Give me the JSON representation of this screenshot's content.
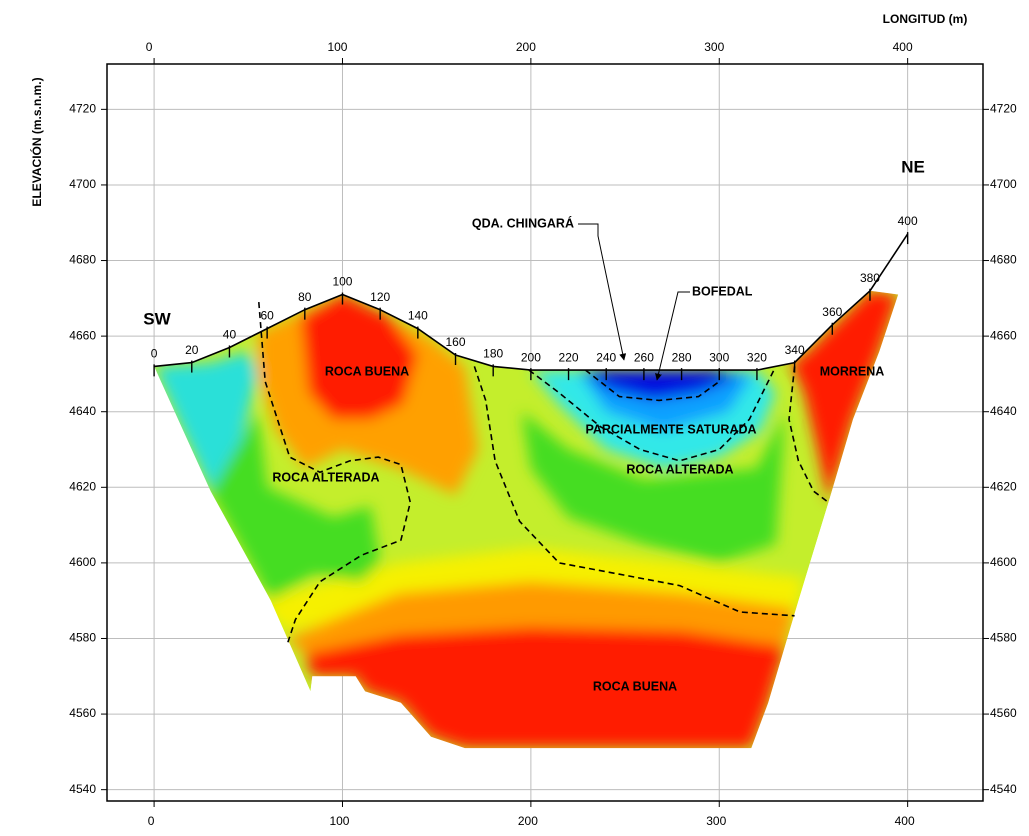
{
  "chart_data": {
    "type": "section",
    "x_label": "LONGITUD (m)",
    "y_label": "ELEVACIÓN (m.s.n.m.)",
    "xlim": [
      -25,
      440
    ],
    "ylim": [
      4537,
      4732
    ],
    "xticks": [
      0,
      100,
      200,
      300,
      400
    ],
    "yticks": [
      4540,
      4560,
      4580,
      4600,
      4620,
      4640,
      4660,
      4680,
      4700,
      4720
    ],
    "grid": true,
    "sides": [
      "SW",
      "NE"
    ],
    "topography": {
      "color": "#000000",
      "x": [
        0,
        20,
        40,
        60,
        80,
        100,
        120,
        140,
        160,
        180,
        200,
        220,
        240,
        260,
        280,
        300,
        320,
        340,
        360,
        380,
        400
      ],
      "y": [
        4652,
        4653,
        4657,
        4662,
        4667,
        4671,
        4667,
        4662,
        4655,
        4652,
        4651,
        4651,
        4651,
        4651,
        4651,
        4651,
        4651,
        4653,
        4663,
        4672,
        4687
      ]
    },
    "section": {
      "color": "#c4ee2c",
      "x": [
        0,
        20,
        40,
        60,
        80,
        100,
        120,
        140,
        160,
        180,
        200,
        220,
        240,
        260,
        280,
        300,
        320,
        340,
        360,
        380,
        395,
        385,
        371,
        358,
        342,
        326,
        317,
        165,
        147,
        131,
        112,
        107,
        91,
        84,
        83,
        62,
        30
      ],
      "y": [
        4652,
        4653,
        4657,
        4662,
        4667,
        4671,
        4667,
        4662,
        4655,
        4652,
        4651,
        4651,
        4651,
        4651,
        4651,
        4651,
        4651,
        4653,
        4663,
        4672,
        4671,
        4656,
        4638,
        4616,
        4590,
        4563,
        4551,
        4551,
        4554,
        4563,
        4566,
        4570,
        4570,
        4570,
        4566,
        4590,
        4619
      ]
    },
    "zones": [
      {
        "color": "#f6f000",
        "x": [
          55,
          130,
          200,
          280,
          345,
          340,
          280,
          200,
          130,
          70
        ],
        "y": [
          4590,
          4600,
          4604,
          4600,
          4596,
          4584,
          4588,
          4590,
          4588,
          4582
        ]
      },
      {
        "color": "#ff9a00",
        "x": [
          70,
          130,
          200,
          280,
          340,
          335,
          280,
          200,
          130,
          80
        ],
        "y": [
          4580,
          4592,
          4595,
          4592,
          4588,
          4578,
          4582,
          4583,
          4581,
          4576
        ]
      },
      {
        "color": "#ff1a00",
        "x": [
          80,
          130,
          200,
          280,
          335,
          326,
          317,
          165,
          147,
          131,
          112,
          107,
          91,
          84
        ],
        "y": [
          4576,
          4581,
          4583,
          4582,
          4578,
          4563,
          4551,
          4551,
          4554,
          4563,
          4566,
          4570,
          4570,
          4570
        ]
      },
      {
        "color": "#ffa000",
        "x": [
          55,
          100,
          145,
          165,
          172,
          160,
          130,
          100,
          80,
          65,
          55
        ],
        "y": [
          4661,
          4671,
          4660,
          4652,
          4630,
          4618,
          4625,
          4630,
          4625,
          4635,
          4650
        ]
      },
      {
        "color": "#ff1a00",
        "x": [
          78,
          100,
          125,
          140,
          132,
          115,
          95,
          82
        ],
        "y": [
          4665,
          4671,
          4665,
          4655,
          4642,
          4638,
          4638,
          4645
        ]
      },
      {
        "color": "#ff1a00",
        "x": [
          338,
          345,
          380,
          395,
          385,
          371,
          358,
          352,
          345
        ],
        "y": [
          4653,
          4655,
          4672,
          4671,
          4656,
          4638,
          4616,
          4630,
          4645
        ]
      },
      {
        "color": "#2ae0d8",
        "x": [
          0,
          30,
          50,
          55,
          45,
          30,
          15
        ],
        "y": [
          4652,
          4653,
          4656,
          4650,
          4630,
          4619,
          4635
        ]
      },
      {
        "color": "#44dd22",
        "x": [
          30,
          55,
          60,
          95,
          115,
          120,
          110,
          85,
          62
        ],
        "y": [
          4619,
          4640,
          4620,
          4612,
          4615,
          4600,
          4595,
          4597,
          4590
        ]
      },
      {
        "color": "#44dd22",
        "x": [
          195,
          220,
          260,
          320,
          335,
          330,
          300,
          260,
          220,
          200
        ],
        "y": [
          4640,
          4630,
          4622,
          4625,
          4640,
          4605,
          4600,
          4605,
          4612,
          4625
        ]
      },
      {
        "color": "#30e8e8",
        "x": [
          200,
          215,
          240,
          300,
          320,
          330,
          322,
          300,
          270,
          240,
          215
        ],
        "y": [
          4651,
          4651,
          4651,
          4651,
          4651,
          4645,
          4635,
          4628,
          4625,
          4630,
          4642
        ]
      },
      {
        "color": "#0aa0ff",
        "x": [
          225,
          260,
          300,
          318,
          305,
          270,
          240
        ],
        "y": [
          4651,
          4651,
          4651,
          4650,
          4640,
          4635,
          4640
        ]
      },
      {
        "color": "#0010e0",
        "x": [
          228,
          260,
          300,
          310,
          290,
          265,
          240
        ],
        "y": [
          4651,
          4651,
          4651,
          4649,
          4645,
          4643,
          4646
        ]
      }
    ],
    "boundaries": {
      "color": "#000000",
      "lines": [
        {
          "x": [
            55.6,
            59,
            72,
            88,
            104,
            119,
            131,
            136,
            131,
            110,
            88,
            75,
            71
          ],
          "y": [
            4669,
            4648,
            4628,
            4624,
            4627,
            4628,
            4626,
            4616,
            4606,
            4602,
            4595,
            4585,
            4579
          ]
        },
        {
          "x": [
            170,
            176,
            181,
            194,
            215,
            247,
            279,
            311,
            340
          ],
          "y": [
            4652,
            4643,
            4627,
            4611,
            4600,
            4597,
            4594,
            4587,
            4586
          ]
        },
        {
          "x": [
            199,
            215,
            237,
            258,
            279,
            300,
            316,
            326,
            329
          ],
          "y": [
            4651,
            4645,
            4636,
            4630,
            4627,
            4630,
            4638,
            4648,
            4651
          ]
        },
        {
          "x": [
            229,
            247,
            268,
            289,
            300
          ],
          "y": [
            4651,
            4644,
            4643,
            4644,
            4648
          ]
        },
        {
          "x": [
            340,
            337,
            342,
            350,
            358
          ],
          "y": [
            4652,
            4638,
            4627,
            4619,
            4616
          ]
        }
      ]
    },
    "annotations": [
      "ROCA BUENA",
      "MORRENA",
      "PARCIALMENTE SATURADA",
      "ROCA ALTERADA",
      "ROCA ALTERADA",
      "ROCA BUENA",
      "QDA. CHINGARÁ",
      "BOFEDAL"
    ]
  }
}
